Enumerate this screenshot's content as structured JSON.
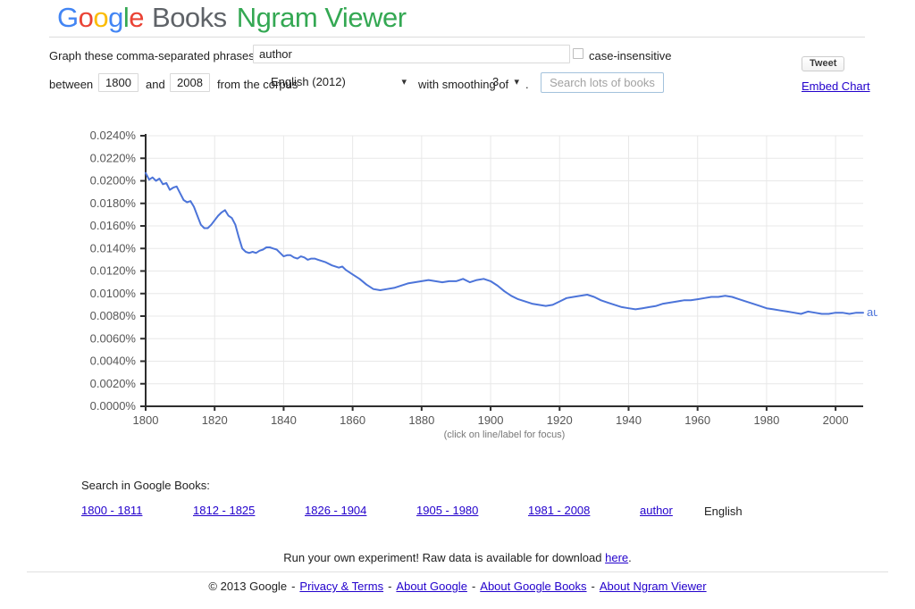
{
  "logo": {
    "google_letters": [
      {
        "ch": "G",
        "color": "#4285F4"
      },
      {
        "ch": "o",
        "color": "#EA4335"
      },
      {
        "ch": "o",
        "color": "#FBBC05"
      },
      {
        "ch": "g",
        "color": "#4285F4"
      },
      {
        "ch": "l",
        "color": "#34A853"
      },
      {
        "ch": "e",
        "color": "#EA4335"
      }
    ],
    "books": "Books",
    "books_color": "#5F6368",
    "product": "Ngram Viewer",
    "product_color": "#34A853"
  },
  "icons": {
    "chevron_down": "▾"
  },
  "form": {
    "phrases_label": "Graph these comma-separated phrases:",
    "phrases_value": "author",
    "case_insensitive_label": "case-insensitive",
    "case_insensitive_checked": false,
    "tweet_label": "Tweet",
    "between_label": "between",
    "start_year": "1800",
    "and_label": "and",
    "end_year": "2008",
    "corpus_label": "from the corpus",
    "corpus_value": "English (2012)",
    "smoothing_label": "with smoothing of",
    "smoothing_value": "3",
    "period_label": ".",
    "search_button_label": "Search lots of books",
    "embed_chart_label": "Embed Chart"
  },
  "chart_data": {
    "type": "line",
    "title": "",
    "xlabel": "",
    "ylabel": "",
    "x_range": [
      1800,
      2008
    ],
    "x_ticks": [
      1800,
      1820,
      1840,
      1860,
      1880,
      1900,
      1920,
      1940,
      1960,
      1980,
      2000
    ],
    "y_range": [
      0,
      0.024
    ],
    "y_ticks": [
      {
        "value": 0.024,
        "label": "0.0240%"
      },
      {
        "value": 0.022,
        "label": "0.0220%"
      },
      {
        "value": 0.02,
        "label": "0.0200%"
      },
      {
        "value": 0.018,
        "label": "0.0180%"
      },
      {
        "value": 0.016,
        "label": "0.0160%"
      },
      {
        "value": 0.014,
        "label": "0.0140%"
      },
      {
        "value": 0.012,
        "label": "0.0120%"
      },
      {
        "value": 0.01,
        "label": "0.0100%"
      },
      {
        "value": 0.008,
        "label": "0.0080%"
      },
      {
        "value": 0.006,
        "label": "0.0060%"
      },
      {
        "value": 0.004,
        "label": "0.0040%"
      },
      {
        "value": 0.002,
        "label": "0.0020%"
      },
      {
        "value": 0.0,
        "label": "0.0000%"
      }
    ],
    "grid": true,
    "legend_position": "line-end",
    "caption": "(click on line/label for focus)",
    "series": [
      {
        "name": "author",
        "color": "#4C74D9",
        "units": "percent of corpus",
        "points": [
          [
            1800,
            0.0207
          ],
          [
            1801,
            0.0201
          ],
          [
            1802,
            0.0203
          ],
          [
            1803,
            0.02
          ],
          [
            1804,
            0.0202
          ],
          [
            1805,
            0.0197
          ],
          [
            1806,
            0.0198
          ],
          [
            1807,
            0.0192
          ],
          [
            1808,
            0.0194
          ],
          [
            1809,
            0.0195
          ],
          [
            1810,
            0.0189
          ],
          [
            1811,
            0.0183
          ],
          [
            1812,
            0.0181
          ],
          [
            1813,
            0.0182
          ],
          [
            1814,
            0.0177
          ],
          [
            1815,
            0.0169
          ],
          [
            1816,
            0.0161
          ],
          [
            1817,
            0.0158
          ],
          [
            1818,
            0.0158
          ],
          [
            1819,
            0.0161
          ],
          [
            1820,
            0.0165
          ],
          [
            1821,
            0.0169
          ],
          [
            1822,
            0.0172
          ],
          [
            1823,
            0.0174
          ],
          [
            1824,
            0.0169
          ],
          [
            1825,
            0.0167
          ],
          [
            1826,
            0.0161
          ],
          [
            1827,
            0.015
          ],
          [
            1828,
            0.014
          ],
          [
            1829,
            0.0137
          ],
          [
            1830,
            0.0136
          ],
          [
            1831,
            0.0137
          ],
          [
            1832,
            0.0136
          ],
          [
            1833,
            0.0138
          ],
          [
            1834,
            0.0139
          ],
          [
            1835,
            0.0141
          ],
          [
            1836,
            0.0141
          ],
          [
            1837,
            0.014
          ],
          [
            1838,
            0.0139
          ],
          [
            1839,
            0.0136
          ],
          [
            1840,
            0.0133
          ],
          [
            1841,
            0.0134
          ],
          [
            1842,
            0.0134
          ],
          [
            1843,
            0.0132
          ],
          [
            1844,
            0.0131
          ],
          [
            1845,
            0.0133
          ],
          [
            1846,
            0.0132
          ],
          [
            1847,
            0.013
          ],
          [
            1848,
            0.0131
          ],
          [
            1849,
            0.0131
          ],
          [
            1850,
            0.013
          ],
          [
            1852,
            0.0128
          ],
          [
            1854,
            0.0125
          ],
          [
            1856,
            0.0123
          ],
          [
            1857,
            0.0124
          ],
          [
            1858,
            0.0121
          ],
          [
            1860,
            0.0117
          ],
          [
            1862,
            0.0113
          ],
          [
            1864,
            0.0108
          ],
          [
            1866,
            0.0104
          ],
          [
            1868,
            0.0103
          ],
          [
            1870,
            0.0104
          ],
          [
            1872,
            0.0105
          ],
          [
            1874,
            0.0107
          ],
          [
            1876,
            0.0109
          ],
          [
            1878,
            0.011
          ],
          [
            1880,
            0.0111
          ],
          [
            1882,
            0.0112
          ],
          [
            1884,
            0.0111
          ],
          [
            1886,
            0.011
          ],
          [
            1888,
            0.0111
          ],
          [
            1890,
            0.0111
          ],
          [
            1892,
            0.0113
          ],
          [
            1894,
            0.011
          ],
          [
            1896,
            0.0112
          ],
          [
            1898,
            0.0113
          ],
          [
            1900,
            0.0111
          ],
          [
            1902,
            0.0107
          ],
          [
            1904,
            0.0102
          ],
          [
            1906,
            0.0098
          ],
          [
            1908,
            0.0095
          ],
          [
            1910,
            0.0093
          ],
          [
            1912,
            0.0091
          ],
          [
            1914,
            0.009
          ],
          [
            1916,
            0.0089
          ],
          [
            1918,
            0.009
          ],
          [
            1920,
            0.0093
          ],
          [
            1922,
            0.0096
          ],
          [
            1924,
            0.0097
          ],
          [
            1926,
            0.0098
          ],
          [
            1928,
            0.0099
          ],
          [
            1930,
            0.0097
          ],
          [
            1932,
            0.0094
          ],
          [
            1934,
            0.0092
          ],
          [
            1936,
            0.009
          ],
          [
            1938,
            0.0088
          ],
          [
            1940,
            0.0087
          ],
          [
            1942,
            0.0086
          ],
          [
            1944,
            0.0087
          ],
          [
            1946,
            0.0088
          ],
          [
            1948,
            0.0089
          ],
          [
            1950,
            0.0091
          ],
          [
            1952,
            0.0092
          ],
          [
            1954,
            0.0093
          ],
          [
            1956,
            0.0094
          ],
          [
            1958,
            0.0094
          ],
          [
            1960,
            0.0095
          ],
          [
            1962,
            0.0096
          ],
          [
            1964,
            0.0097
          ],
          [
            1966,
            0.0097
          ],
          [
            1968,
            0.0098
          ],
          [
            1970,
            0.0097
          ],
          [
            1972,
            0.0095
          ],
          [
            1974,
            0.0093
          ],
          [
            1976,
            0.0091
          ],
          [
            1978,
            0.0089
          ],
          [
            1980,
            0.0087
          ],
          [
            1982,
            0.0086
          ],
          [
            1984,
            0.0085
          ],
          [
            1986,
            0.0084
          ],
          [
            1988,
            0.0083
          ],
          [
            1990,
            0.0082
          ],
          [
            1992,
            0.0084
          ],
          [
            1994,
            0.0083
          ],
          [
            1996,
            0.0082
          ],
          [
            1998,
            0.0082
          ],
          [
            2000,
            0.0083
          ],
          [
            2002,
            0.0083
          ],
          [
            2004,
            0.0082
          ],
          [
            2006,
            0.0083
          ],
          [
            2008,
            0.0083
          ]
        ]
      }
    ]
  },
  "search_links": {
    "heading": "Search in Google Books:",
    "ranges": [
      "1800 - 1811",
      "1812 - 1825",
      "1826 - 1904",
      "1905 - 1980",
      "1981 - 2008"
    ],
    "term": "author",
    "language": "English"
  },
  "experiment": {
    "before": "Run your own experiment! Raw data is available for download ",
    "link_label": "here",
    "after": "."
  },
  "footer": {
    "copyright": "© 2013 Google",
    "separator": "-",
    "links": [
      "Privacy & Terms",
      "About Google",
      "About Google Books",
      "About Ngram Viewer"
    ]
  }
}
